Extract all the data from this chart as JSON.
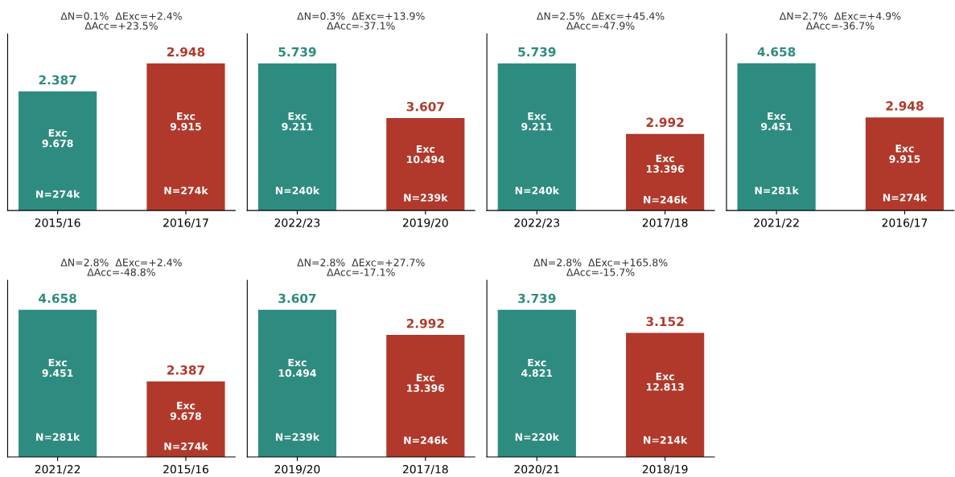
{
  "chart_data": [
    {
      "type": "bar",
      "title": "ΔN=0.1%  ΔExc=+2.4%\nΔAcc=+23.5%",
      "categories": [
        "2015/16",
        "2016/17"
      ],
      "values": [
        2.387,
        2.948
      ],
      "colors": [
        "#2e8b7f",
        "#b0392b"
      ],
      "data_labels": true,
      "ylim": [
        0,
        3.54
      ],
      "tick_labels": "x",
      "annotations": [
        "Exc\n9.678",
        "N=274k",
        "Exc\n9.915",
        "N=274k"
      ]
    },
    {
      "type": "bar",
      "title": "ΔN=0.3%  ΔExc=+13.9%\nΔAcc=-37.1%",
      "categories": [
        "2022/23",
        "2019/20"
      ],
      "values": [
        5.739,
        3.607
      ],
      "colors": [
        "#2e8b7f",
        "#b0392b"
      ],
      "data_labels": true,
      "ylim": [
        0,
        6.89
      ],
      "tick_labels": "x",
      "annotations": [
        "Exc\n9.211",
        "N=240k",
        "Exc\n10.494",
        "N=239k"
      ]
    },
    {
      "type": "bar",
      "title": "ΔN=2.5%  ΔExc=+45.4%\nΔAcc=-47.9%",
      "categories": [
        "2022/23",
        "2017/18"
      ],
      "values": [
        5.739,
        2.992
      ],
      "colors": [
        "#2e8b7f",
        "#b0392b"
      ],
      "data_labels": true,
      "ylim": [
        0,
        6.89
      ],
      "tick_labels": "x",
      "annotations": [
        "Exc\n9.211",
        "N=240k",
        "Exc\n13.396",
        "N=246k"
      ]
    },
    {
      "type": "bar",
      "title": "ΔN=2.7%  ΔExc=+4.9%\nΔAcc=-36.7%",
      "categories": [
        "2021/22",
        "2016/17"
      ],
      "values": [
        4.658,
        2.948
      ],
      "colors": [
        "#2e8b7f",
        "#b0392b"
      ],
      "data_labels": true,
      "ylim": [
        0,
        5.59
      ],
      "tick_labels": "x",
      "annotations": [
        "Exc\n9.451",
        "N=281k",
        "Exc\n9.915",
        "N=274k"
      ]
    },
    {
      "type": "bar",
      "title": "ΔN=2.8%  ΔExc=+2.4%\nΔAcc=-48.8%",
      "categories": [
        "2021/22",
        "2015/16"
      ],
      "values": [
        4.658,
        2.387
      ],
      "colors": [
        "#2e8b7f",
        "#b0392b"
      ],
      "data_labels": true,
      "ylim": [
        0,
        5.59
      ],
      "tick_labels": "x",
      "annotations": [
        "Exc\n9.451",
        "N=281k",
        "Exc\n9.678",
        "N=274k"
      ]
    },
    {
      "type": "bar",
      "title": "ΔN=2.8%  ΔExc=+27.7%\nΔAcc=-17.1%",
      "categories": [
        "2019/20",
        "2017/18"
      ],
      "values": [
        3.607,
        2.992
      ],
      "colors": [
        "#2e8b7f",
        "#b0392b"
      ],
      "data_labels": true,
      "ylim": [
        0,
        4.33
      ],
      "tick_labels": "x",
      "annotations": [
        "Exc\n10.494",
        "N=239k",
        "Exc\n13.396",
        "N=246k"
      ]
    },
    {
      "type": "bar",
      "title": "ΔN=2.8%  ΔExc=+165.8%\nΔAcc=-15.7%",
      "categories": [
        "2020/21",
        "2018/19"
      ],
      "values": [
        3.739,
        3.152
      ],
      "colors": [
        "#2e8b7f",
        "#b0392b"
      ],
      "data_labels": true,
      "ylim": [
        0,
        4.49
      ],
      "tick_labels": "x",
      "annotations": [
        "Exc\n4.821",
        "N=220k",
        "Exc\n12.813",
        "N=214k"
      ]
    }
  ]
}
